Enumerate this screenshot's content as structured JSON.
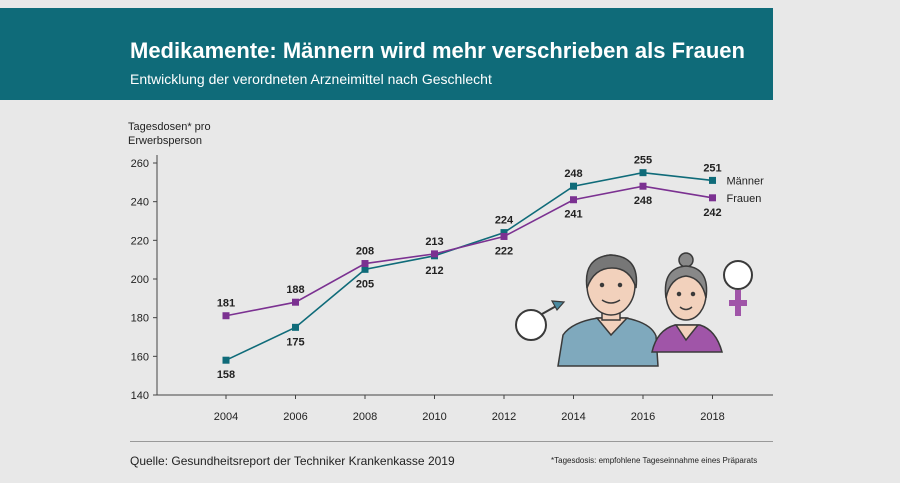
{
  "header": {
    "title": "Medikamente: Männern wird mehr verschrieben als Frauen",
    "subtitle": "Entwicklung der verordneten Arzneimittel nach Geschlecht"
  },
  "chart_data": {
    "type": "line",
    "ylabel": "Tagesdosen* pro Erwerbsperson",
    "x": [
      "2004",
      "2006",
      "2008",
      "2010",
      "2012",
      "2014",
      "2016",
      "2018"
    ],
    "yticks": [
      140,
      160,
      180,
      200,
      220,
      240,
      260
    ],
    "ylim": [
      140,
      265
    ],
    "grid": false,
    "legend_position": "right",
    "series": [
      {
        "name": "Männer",
        "color": "#0f6b79",
        "values": [
          158,
          175,
          205,
          212,
          224,
          248,
          255,
          251
        ]
      },
      {
        "name": "Frauen",
        "color": "#7b3191",
        "values": [
          181,
          188,
          208,
          213,
          222,
          241,
          248,
          242
        ]
      }
    ]
  },
  "footer": {
    "source": "Quelle: Gesundheitsreport der Techniker Krankenkasse 2019",
    "note": "*Tagesdosis: empfohlene Tageseinnahme eines Präparats"
  },
  "illustration": {
    "icons": [
      "male-symbol-icon",
      "man-figure-icon",
      "woman-figure-icon",
      "female-symbol-icon"
    ]
  }
}
